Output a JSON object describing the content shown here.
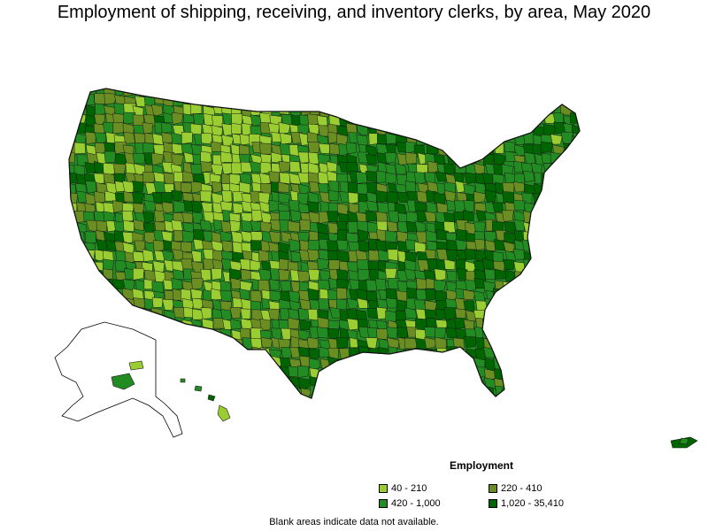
{
  "title": "Employment of shipping, receiving, and inventory clerks, by area, May 2020",
  "legend": {
    "title": "Employment",
    "items": [
      {
        "label": "40 - 210",
        "color": "#9acd32"
      },
      {
        "label": "220 - 410",
        "color": "#6b8e23"
      },
      {
        "label": "420 - 1,000",
        "color": "#228b22"
      },
      {
        "label": "1,020 - 35,410",
        "color": "#006400"
      }
    ]
  },
  "footnote": "Blank areas indicate data not available.",
  "colors": {
    "c1": "#9acd32",
    "c2": "#6b8e23",
    "c3": "#228b22",
    "c4": "#006400",
    "border": "#1a1a1a"
  }
}
